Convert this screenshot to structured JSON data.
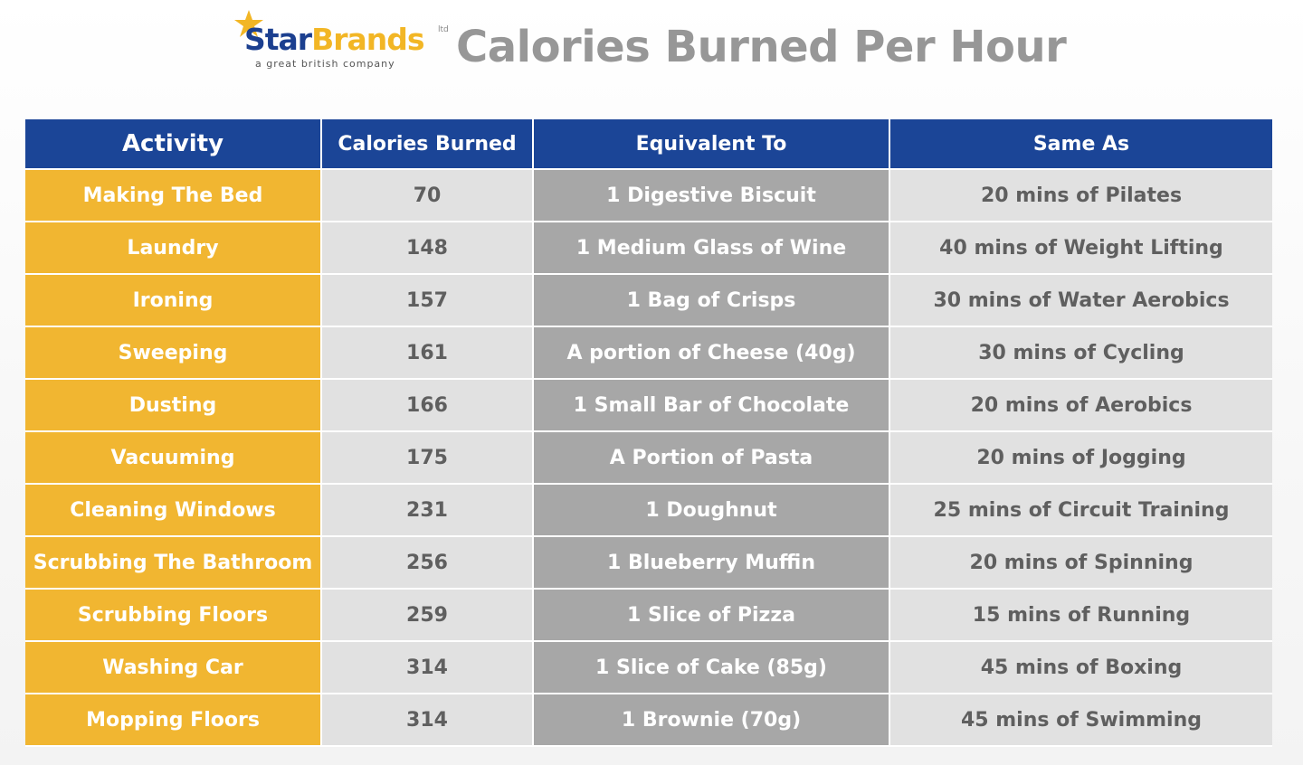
{
  "header": {
    "logo": {
      "name_part1": "Star",
      "name_part2": "Brands",
      "suffix": "ltd",
      "tagline": "a great british company"
    },
    "title": "Calories Burned Per Hour"
  },
  "colors": {
    "header_blue": "#1b4597",
    "activity_yellow": "#f1b631",
    "light_gray": "#e1e1e1",
    "dark_gray": "#a7a7a7",
    "title_gray": "#979797"
  },
  "chart_data": {
    "type": "table",
    "columns": [
      "Activity",
      "Calories Burned",
      "Equivalent To",
      "Same As"
    ],
    "rows": [
      [
        "Making The Bed",
        "70",
        "1 Digestive Biscuit",
        "20 mins of Pilates"
      ],
      [
        "Laundry",
        "148",
        "1 Medium Glass of Wine",
        "40 mins of Weight Lifting"
      ],
      [
        "Ironing",
        "157",
        "1 Bag of Crisps",
        "30 mins of Water Aerobics"
      ],
      [
        "Sweeping",
        "161",
        "A portion of Cheese (40g)",
        "30 mins of Cycling"
      ],
      [
        "Dusting",
        "166",
        "1 Small Bar of Chocolate",
        "20 mins of Aerobics"
      ],
      [
        "Vacuuming",
        "175",
        "A Portion of Pasta",
        "20 mins of Jogging"
      ],
      [
        "Cleaning Windows",
        "231",
        "1 Doughnut",
        "25 mins of Circuit Training"
      ],
      [
        "Scrubbing The Bathroom",
        "256",
        "1 Blueberry Muffin",
        "20 mins of Spinning"
      ],
      [
        "Scrubbing Floors",
        "259",
        "1 Slice of Pizza",
        "15 mins of Running"
      ],
      [
        "Washing Car",
        "314",
        "1 Slice of Cake (85g)",
        "45 mins of Boxing"
      ],
      [
        "Mopping Floors",
        "314",
        "1 Brownie (70g)",
        "45 mins of Swimming"
      ]
    ]
  }
}
